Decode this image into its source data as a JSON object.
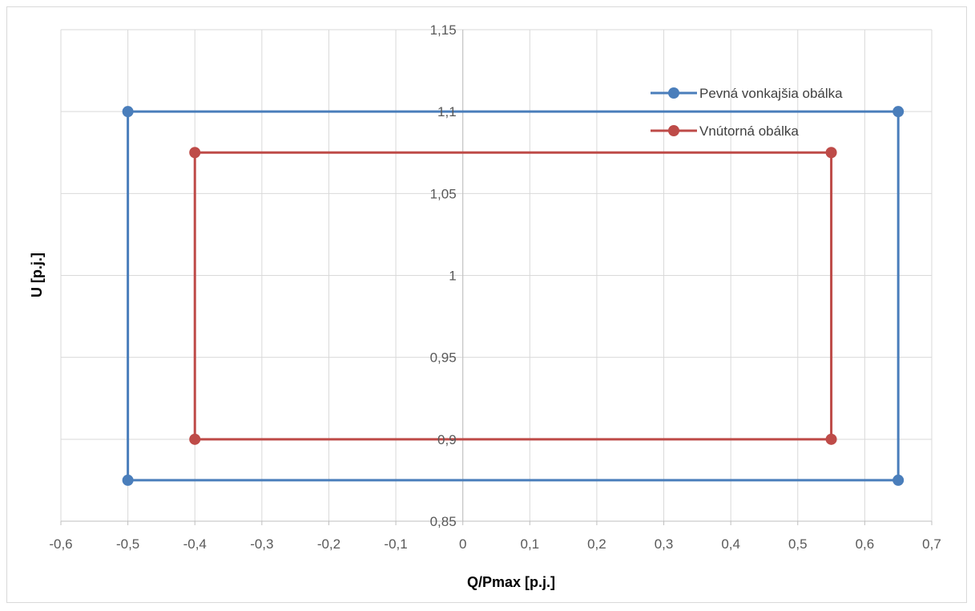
{
  "chart_data": {
    "type": "scatter",
    "title": "",
    "xlabel": "Q/Pmax [p.j.]",
    "ylabel": "U [p.j.]",
    "xlim": [
      -0.6,
      0.7
    ],
    "ylim": [
      0.85,
      1.15
    ],
    "x_ticks": [
      -0.6,
      -0.5,
      -0.4,
      -0.3,
      -0.2,
      -0.1,
      0,
      0.1,
      0.2,
      0.3,
      0.4,
      0.5,
      0.6,
      0.7
    ],
    "y_ticks": [
      0.85,
      0.9,
      0.95,
      1,
      1.05,
      1.1,
      1.15
    ],
    "x_tick_labels": [
      "-0,6",
      "-0,5",
      "-0,4",
      "-0,3",
      "-0,2",
      "-0,1",
      "0",
      "0,1",
      "0,2",
      "0,3",
      "0,4",
      "0,5",
      "0,6",
      "0,7"
    ],
    "y_tick_labels": [
      "0,85",
      "0,9",
      "0,95",
      "1",
      "1,05",
      "1,1",
      "1,15"
    ],
    "grid": true,
    "legend_position": "top-right",
    "series": [
      {
        "name": "Pevná vonkajšia obálka",
        "color": "#4a7ebb",
        "marker": "circle",
        "x": [
          -0.5,
          0.65,
          0.65,
          -0.5,
          -0.5
        ],
        "y": [
          1.1,
          1.1,
          0.875,
          0.875,
          1.1
        ]
      },
      {
        "name": "Vnútorná obálka",
        "color": "#be4b48",
        "marker": "circle",
        "x": [
          -0.4,
          0.55,
          0.55,
          -0.4,
          -0.4
        ],
        "y": [
          1.075,
          1.075,
          0.9,
          0.9,
          1.075
        ]
      }
    ]
  }
}
